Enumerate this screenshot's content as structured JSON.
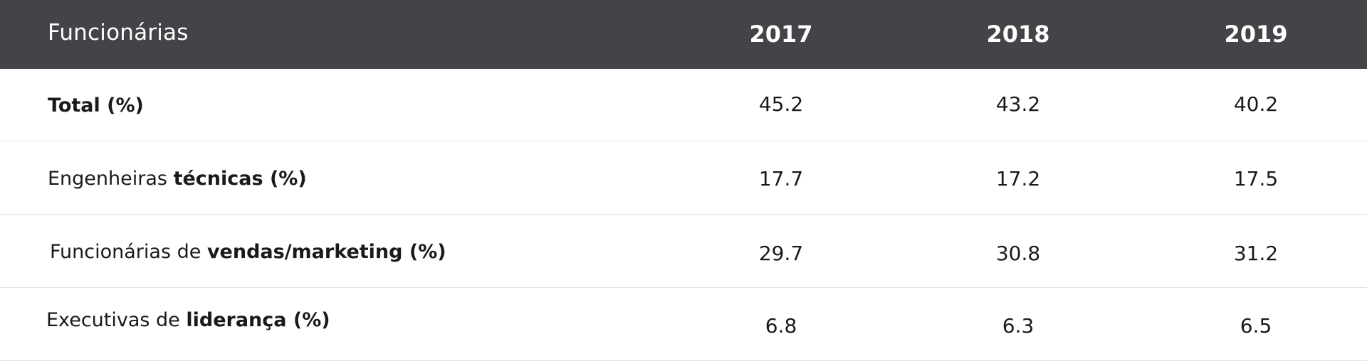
{
  "table": {
    "header": {
      "label": "Funcionárias",
      "years": [
        "2017",
        "2018",
        "2019"
      ]
    },
    "rows": [
      {
        "label_plain": "",
        "label_bold": "Total (%)",
        "values": [
          "45.2",
          "43.2",
          "40.2"
        ]
      },
      {
        "label_plain": "Engenheiras ",
        "label_bold": "técnicas (%)",
        "values": [
          "17.7",
          "17.2",
          "17.5"
        ]
      },
      {
        "label_plain": "Funcionárias de ",
        "label_bold": "vendas/marketing (%)",
        "values": [
          "29.7",
          "30.8",
          "31.2"
        ]
      },
      {
        "label_plain": "Executivas de ",
        "label_bold": "liderança (%)",
        "values": [
          "6.8",
          "6.3",
          "6.5"
        ]
      }
    ]
  }
}
